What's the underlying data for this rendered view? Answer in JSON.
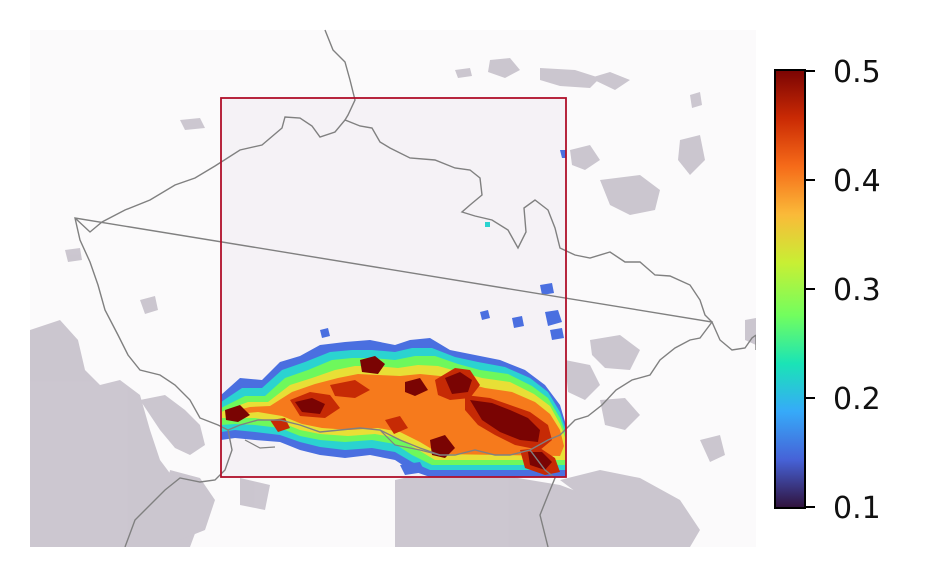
{
  "map": {
    "background_color": "#fbfafb",
    "outside_cloud_color": "#c9c4cd",
    "inside_background_color": "#f5f2f6",
    "border_line_color": "#808080",
    "domain_box_color": "#b0102a"
  },
  "colorbar": {
    "colormap": "turbo",
    "min": 0.1,
    "max": 0.5,
    "ticks": [
      {
        "value": 0.5,
        "label": "0.5"
      },
      {
        "value": 0.4,
        "label": "0.4"
      },
      {
        "value": 0.3,
        "label": "0.3"
      },
      {
        "value": 0.2,
        "label": "0.2"
      },
      {
        "value": 0.1,
        "label": "0.1"
      }
    ],
    "stops": [
      "#30123b",
      "#4662d7",
      "#36aaf9",
      "#1ae4b6",
      "#72fe5e",
      "#c8ef34",
      "#faba39",
      "#f66b19",
      "#ca2a04",
      "#7a0403"
    ]
  }
}
